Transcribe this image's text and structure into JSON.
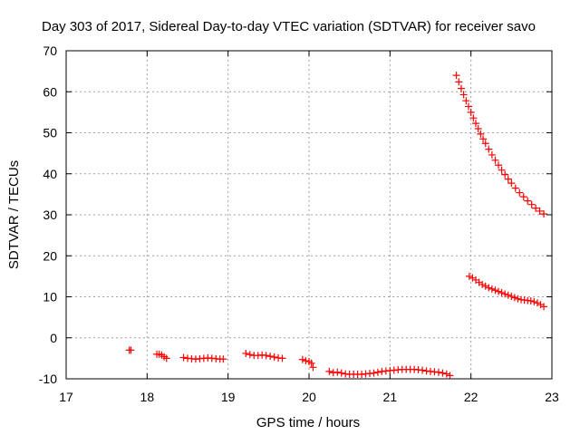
{
  "chart_data": {
    "type": "scatter",
    "title": "Day 303 of 2017, Sidereal Day-to-day VTEC variation (SDTVAR) for receiver savo",
    "xlabel": "GPS time / hours",
    "ylabel": "SDTVAR / TECUs",
    "xlim": [
      17,
      23
    ],
    "ylim": [
      -10,
      70
    ],
    "xticks": [
      17,
      18,
      19,
      20,
      21,
      22,
      23
    ],
    "yticks": [
      -10,
      0,
      10,
      20,
      30,
      40,
      50,
      60,
      70
    ],
    "grid": true,
    "marker": "plus",
    "color": "#ff0000",
    "series": [
      {
        "name": "seg1",
        "x": [
          17.78,
          17.8
        ],
        "y": [
          -3.0,
          -3.0
        ]
      },
      {
        "name": "seg2",
        "x": [
          18.12,
          18.15,
          18.18,
          18.21,
          18.24
        ],
        "y": [
          -4.0,
          -4.0,
          -4.2,
          -4.6,
          -5.0
        ]
      },
      {
        "name": "seg3",
        "x": [
          18.45,
          18.5,
          18.55,
          18.6,
          18.65,
          18.7,
          18.75,
          18.8,
          18.85,
          18.9,
          18.94
        ],
        "y": [
          -4.8,
          -5.0,
          -5.1,
          -5.2,
          -5.1,
          -5.0,
          -4.9,
          -5.0,
          -5.1,
          -5.2,
          -5.2
        ]
      },
      {
        "name": "seg4",
        "x": [
          19.22,
          19.27,
          19.32,
          19.37,
          19.42,
          19.47,
          19.52,
          19.57,
          19.62,
          19.67
        ],
        "y": [
          -3.8,
          -4.1,
          -4.3,
          -4.3,
          -4.2,
          -4.3,
          -4.5,
          -4.7,
          -4.9,
          -5.0
        ]
      },
      {
        "name": "seg5",
        "x": [
          19.92,
          19.96,
          20.0,
          20.03,
          20.05
        ],
        "y": [
          -5.3,
          -5.6,
          -5.8,
          -6.2,
          -7.2
        ]
      },
      {
        "name": "seg6",
        "x": [
          20.25,
          20.3,
          20.35,
          20.4,
          20.45,
          20.5,
          20.55,
          20.6,
          20.65,
          20.7,
          20.75,
          20.8,
          20.85,
          20.9,
          20.95,
          21.0,
          21.05,
          21.1,
          21.15,
          21.2,
          21.25,
          21.3,
          21.35,
          21.4,
          21.45,
          21.5,
          21.55,
          21.6,
          21.65,
          21.7,
          21.74
        ],
        "y": [
          -8.2,
          -8.5,
          -8.4,
          -8.6,
          -8.8,
          -8.9,
          -8.9,
          -8.9,
          -8.9,
          -8.8,
          -8.7,
          -8.6,
          -8.4,
          -8.2,
          -8.1,
          -8.0,
          -7.9,
          -7.8,
          -7.7,
          -7.7,
          -7.7,
          -7.7,
          -7.8,
          -7.9,
          -8.1,
          -8.2,
          -8.3,
          -8.4,
          -8.6,
          -8.8,
          -9.2
        ]
      },
      {
        "name": "seg7",
        "x": [
          21.82,
          21.85,
          21.88,
          21.91,
          21.94,
          21.97,
          22.0,
          22.03,
          22.06,
          22.09,
          22.12,
          22.15,
          22.18,
          22.22,
          22.26,
          22.3,
          22.34,
          22.38,
          22.42,
          22.46,
          22.5,
          22.55,
          22.6,
          22.65,
          22.7,
          22.75,
          22.8,
          22.85,
          22.9
        ],
        "y": [
          64.0,
          62.4,
          60.8,
          59.3,
          57.8,
          56.4,
          55.0,
          53.6,
          52.3,
          51.0,
          49.7,
          48.5,
          47.4,
          46.0,
          44.6,
          43.3,
          42.1,
          40.9,
          39.8,
          38.7,
          37.7,
          36.5,
          35.4,
          34.4,
          33.4,
          32.5,
          31.6,
          30.9,
          30.2
        ]
      },
      {
        "name": "seg8",
        "x": [
          21.98,
          22.02,
          22.06,
          22.1,
          22.14,
          22.18,
          22.22,
          22.26,
          22.3,
          22.34,
          22.38,
          22.42,
          22.46,
          22.5,
          22.54,
          22.58,
          22.62,
          22.66,
          22.7,
          22.74,
          22.78,
          22.82,
          22.86,
          22.9
        ],
        "y": [
          15.0,
          14.6,
          14.1,
          13.5,
          13.0,
          12.6,
          12.2,
          11.9,
          11.6,
          11.3,
          11.0,
          10.7,
          10.4,
          10.1,
          9.8,
          9.5,
          9.3,
          9.2,
          9.1,
          9.0,
          8.8,
          8.5,
          8.1,
          7.6
        ]
      }
    ]
  }
}
